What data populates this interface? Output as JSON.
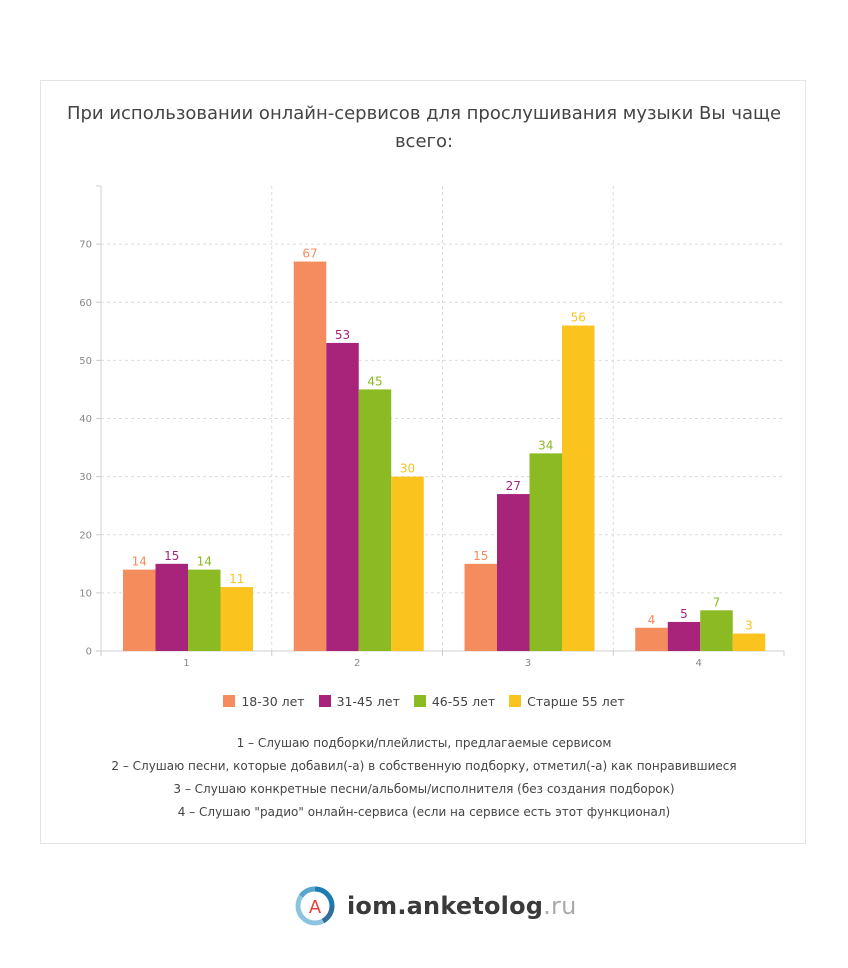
{
  "title": "При использовании онлайн-сервисов для прослушивания музыки Вы чаще всего:",
  "chart_data": {
    "type": "bar",
    "categories": [
      "1",
      "2",
      "3",
      "4"
    ],
    "series": [
      {
        "name": "18-30 лет",
        "color": "#f48c5e",
        "values": [
          14,
          67,
          15,
          4
        ]
      },
      {
        "name": "31-45 лет",
        "color": "#a8247a",
        "values": [
          15,
          53,
          27,
          5
        ]
      },
      {
        "name": "46-55 лет",
        "color": "#8cba22",
        "values": [
          14,
          45,
          34,
          7
        ]
      },
      {
        "name": "Старше 55 лет",
        "color": "#fac31d",
        "values": [
          11,
          30,
          56,
          3
        ]
      }
    ],
    "yticks": [
      0,
      10,
      20,
      30,
      40,
      50,
      60,
      70
    ],
    "ylim": [
      0,
      80
    ],
    "grid": true,
    "legend": "bottom-center"
  },
  "notes": [
    "1 – Слушаю подборки/плейлисты, предлагаемые сервисом",
    "2 – Слушаю песни, которые добавил(-а) в собственную подборку, отметил(-а) как понравившиеся",
    "3 – Слушаю конкретные песни/альбомы/исполнителя (без создания подборок)",
    "4 – Слушаю \"радио\" онлайн-сервиса (если на сервисе есть этот функционал)"
  ],
  "logo": {
    "letter": "A",
    "name": "iom.anketolog",
    "tld": ".ru"
  }
}
